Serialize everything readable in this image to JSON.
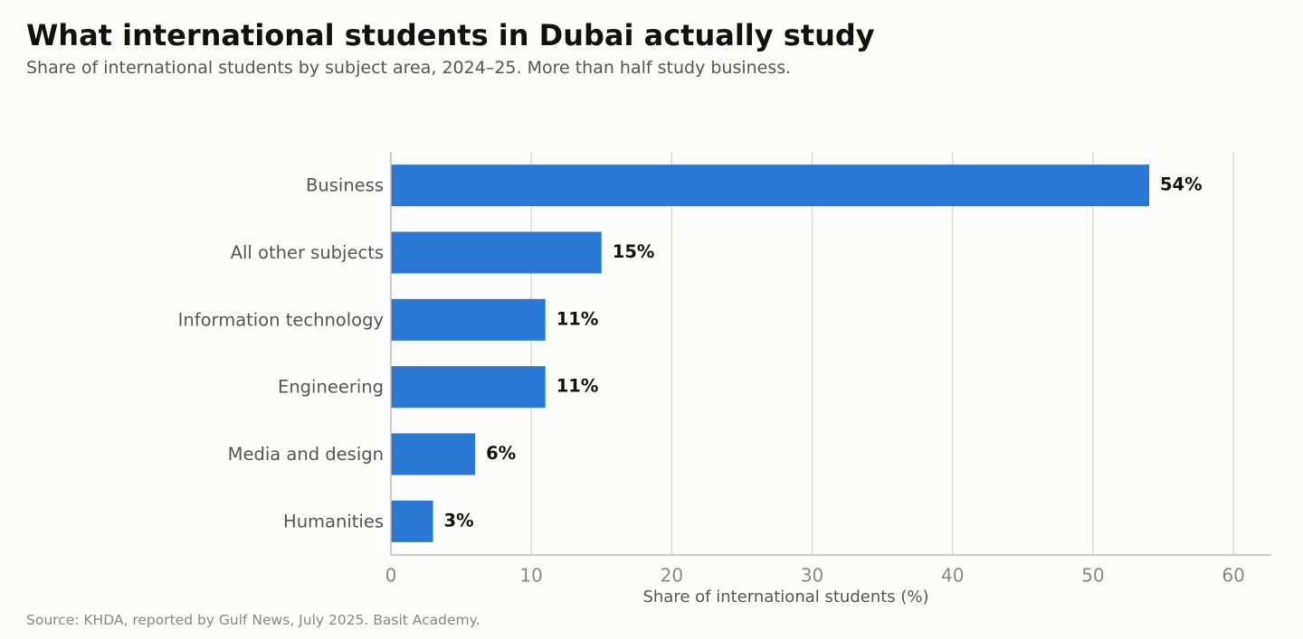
{
  "title": "What international students in Dubai actually study",
  "subtitle": "Share of international students by subject area, 2024–25. More than half study business.",
  "source": "Source: KHDA, reported by Gulf News, July 2025. Basit Academy.",
  "chart_data": {
    "type": "bar",
    "orientation": "horizontal",
    "categories": [
      "Business",
      "All other subjects",
      "Information technology",
      "Engineering",
      "Media and design",
      "Humanities"
    ],
    "values": [
      54,
      15,
      11,
      11,
      6,
      3
    ],
    "value_labels": [
      "54%",
      "15%",
      "11%",
      "11%",
      "6%",
      "3%"
    ],
    "xlabel": "Share of international students (%)",
    "xlim": [
      0,
      62.7
    ],
    "xticks": [
      0,
      10,
      20,
      30,
      40,
      50,
      60
    ],
    "grid": "vertical",
    "bar_color": "#2b78d4",
    "grid_color": "#dcdcd0",
    "axis_color": "#bbbbbb"
  }
}
